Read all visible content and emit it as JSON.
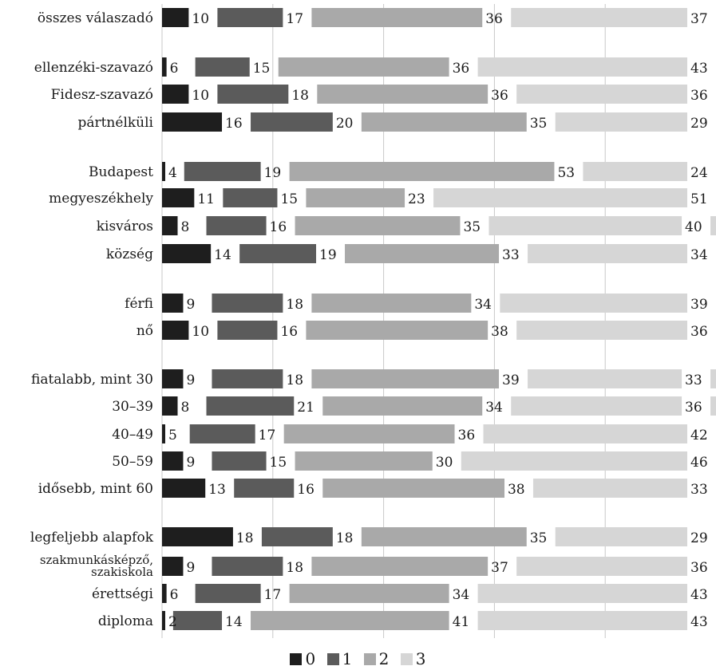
{
  "colors": {
    "0": "#1e1e1e",
    "1": "#5b5b5b",
    "2": "#a9a9a9",
    "3": "#d6d6d6"
  },
  "chart_data": {
    "type": "bar",
    "stacked": true,
    "orientation": "horizontal",
    "xlim": [
      0,
      100
    ],
    "grid": true,
    "legend_position": "bottom",
    "series_names": [
      "0",
      "1",
      "2",
      "3"
    ],
    "rows": [
      {
        "label": "összes válaszadó",
        "values": [
          10,
          17,
          36,
          37
        ]
      },
      {
        "label": "ellenzéki-szavazó",
        "values": [
          6,
          15,
          36,
          43
        ]
      },
      {
        "label": "Fidesz-szavazó",
        "values": [
          10,
          18,
          36,
          36
        ]
      },
      {
        "label": "pártnélküli",
        "values": [
          16,
          20,
          35,
          29
        ]
      },
      {
        "label": "Budapest",
        "values": [
          4,
          19,
          53,
          24
        ]
      },
      {
        "label": "megyeszékhely",
        "values": [
          11,
          15,
          23,
          51
        ]
      },
      {
        "label": "kisváros",
        "values": [
          8,
          16,
          35,
          40
        ]
      },
      {
        "label": "község",
        "values": [
          14,
          19,
          33,
          34
        ]
      },
      {
        "label": "férfi",
        "values": [
          9,
          18,
          34,
          39
        ]
      },
      {
        "label": "nő",
        "values": [
          10,
          16,
          38,
          36
        ]
      },
      {
        "label": "fiatalabb, mint 30",
        "values": [
          9,
          18,
          39,
          33
        ]
      },
      {
        "label": "30–39",
        "values": [
          8,
          21,
          34,
          36
        ]
      },
      {
        "label": "40–49",
        "values": [
          5,
          17,
          36,
          42
        ]
      },
      {
        "label": "50–59",
        "values": [
          9,
          15,
          30,
          46
        ]
      },
      {
        "label": "idősebb, mint 60",
        "values": [
          13,
          16,
          38,
          33
        ]
      },
      {
        "label": "legfeljebb alapfok",
        "values": [
          18,
          18,
          35,
          29
        ]
      },
      {
        "label": "szakmunkásképző,\nszakiskola",
        "values": [
          9,
          18,
          37,
          36
        ]
      },
      {
        "label": "érettségi",
        "values": [
          6,
          17,
          34,
          43
        ]
      },
      {
        "label": "diploma",
        "values": [
          2,
          14,
          41,
          43
        ]
      }
    ]
  }
}
